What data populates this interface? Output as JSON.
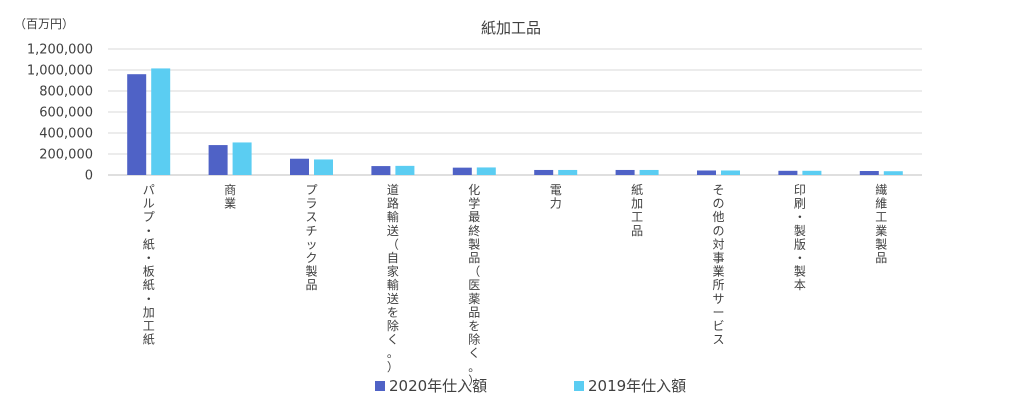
{
  "chart_data": {
    "type": "bar",
    "title": "紙加工品",
    "unit_label": "（百万円）",
    "ylim": [
      0,
      1200000
    ],
    "ytick_labels": [
      "0",
      "200,000",
      "400,000",
      "600,000",
      "800,000",
      "1,000,000",
      "1,200,000"
    ],
    "ytick_values": [
      0,
      200000,
      400000,
      600000,
      800000,
      1000000,
      1200000
    ],
    "grid": true,
    "legend_position": "bottom",
    "categories": [
      "パルプ・紙・板紙・加工紙",
      "商業",
      "プラスチック製品",
      "道路輸送（自家輸送を除く。）",
      "化学最終製品（医薬品を除く。）",
      "電力",
      "紙加工品",
      "その他の対事業所サービス",
      "印刷・製版・製本",
      "繊維工業製品"
    ],
    "series": [
      {
        "name": "2020年仕入額",
        "color": "#4F62C6",
        "values": [
          960000,
          285000,
          155000,
          85000,
          70000,
          48000,
          48000,
          43000,
          40000,
          38000
        ]
      },
      {
        "name": "2019年仕入額",
        "color": "#5BCDF2",
        "values": [
          1015000,
          310000,
          148000,
          87000,
          72000,
          48000,
          48000,
          43000,
          40000,
          36000
        ]
      }
    ]
  }
}
